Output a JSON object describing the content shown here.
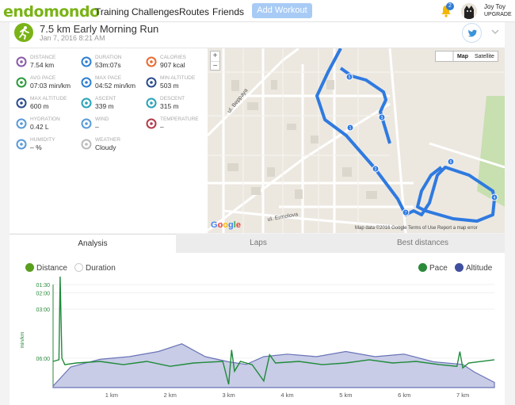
{
  "nav": {
    "logo": "endomondo",
    "links": [
      "Training",
      "Challenges",
      "Routes",
      "Friends"
    ],
    "add_workout": "Add Workout",
    "notifications": "2",
    "user_name": "Joy Toy",
    "upgrade": "UPGRADE"
  },
  "workout": {
    "title": "7.5 km Early Morning Run",
    "date": "Jan 7, 2016 8:21 AM"
  },
  "stats": [
    {
      "label": "DISTANCE",
      "value": "7.54 km",
      "icon": "distance-icon",
      "color": "#8a5aa8"
    },
    {
      "label": "DURATION",
      "value": "53m:07s",
      "icon": "stopwatch-icon",
      "color": "#2f7fd1"
    },
    {
      "label": "CALORIES",
      "value": "907 kcal",
      "icon": "flame-icon",
      "color": "#e96a2e"
    },
    {
      "label": "AVG PACE",
      "value": "07:03 min/km",
      "icon": "pace-icon",
      "color": "#2a9a3b"
    },
    {
      "label": "MAX PACE",
      "value": "04:52 min/km",
      "icon": "stopwatch-icon",
      "color": "#2f7fd1"
    },
    {
      "label": "MIN ALTITUDE",
      "value": "503 m",
      "icon": "mountain-icon",
      "color": "#2a4b8f"
    },
    {
      "label": "MAX ALTITUDE",
      "value": "600 m",
      "icon": "mountain-icon",
      "color": "#2a4b8f"
    },
    {
      "label": "ASCENT",
      "value": "339 m",
      "icon": "ascent-icon",
      "color": "#27a3b8"
    },
    {
      "label": "DESCENT",
      "value": "315 m",
      "icon": "descent-icon",
      "color": "#27a3b8"
    },
    {
      "label": "HYDRATION",
      "value": "0.42 L",
      "icon": "drop-icon",
      "color": "#5a9ad8"
    },
    {
      "label": "WIND",
      "value": "–",
      "icon": "wind-icon",
      "color": "#5a9ad8"
    },
    {
      "label": "TEMPERATURE",
      "value": "–",
      "icon": "thermometer-icon",
      "color": "#b23a4a"
    },
    {
      "label": "HUMIDITY",
      "value": "– %",
      "icon": "humidity-icon",
      "color": "#5a9ad8"
    },
    {
      "label": "WEATHER",
      "value": "Cloudy",
      "icon": "cloud-icon",
      "color": "#bbbbbb"
    }
  ],
  "map": {
    "street1": "ul. Beppaya",
    "street2": "ul. Ermolova",
    "map_button": "Map",
    "satellite_button": "Satellite",
    "footer": "Map data ©2016 Google   Terms of Use   Report a map error",
    "google": "Google",
    "markers": [
      "1",
      "2",
      "3",
      "4",
      "5",
      "6",
      "7"
    ],
    "route_color": "#2f7ae0"
  },
  "tabs": [
    "Analysis",
    "Laps",
    "Best distances"
  ],
  "analysis": {
    "options": [
      {
        "label": "Distance",
        "checked": true,
        "color": "#5a9e1e"
      },
      {
        "label": "Duration",
        "checked": false,
        "color": "#cccccc"
      },
      {
        "label": "Pace",
        "checked": true,
        "color": "#2a8a3a"
      },
      {
        "label": "Altitude",
        "checked": true,
        "color": "#3f4f9e"
      }
    ]
  },
  "chart_data": {
    "type": "line",
    "ylabel": "min/km",
    "y_ticks": [
      "01:30",
      "02:00",
      "03:00",
      "06:00"
    ],
    "x_ticks": [
      "1 km",
      "2 km",
      "3 km",
      "4 km",
      "5 km",
      "6 km",
      "7 km"
    ],
    "x_range": [
      0,
      7.54
    ],
    "series": [
      {
        "name": "Pace",
        "color": "#1f8a3a",
        "x": [
          0,
          0.1,
          0.12,
          0.15,
          0.2,
          0.4,
          0.8,
          1.2,
          1.6,
          2.0,
          2.4,
          2.9,
          3.0,
          3.05,
          3.1,
          3.2,
          3.4,
          3.6,
          3.7,
          3.8,
          4.2,
          4.6,
          5.0,
          5.4,
          5.8,
          6.2,
          6.6,
          6.9,
          6.95,
          7.0,
          7.1,
          7.54
        ],
        "y": [
          6.2,
          6.1,
          1.0,
          6.0,
          6.4,
          6.3,
          6.2,
          6.4,
          6.2,
          6.5,
          6.3,
          6.2,
          7.6,
          5.5,
          6.8,
          6.2,
          6.4,
          7.4,
          5.8,
          6.3,
          6.2,
          6.4,
          6.3,
          6.1,
          6.3,
          6.2,
          6.4,
          6.5,
          5.6,
          6.6,
          6.3,
          6.1
        ]
      },
      {
        "name": "Altitude",
        "color": "#6a74b8",
        "x": [
          0,
          0.3,
          0.8,
          1.3,
          1.8,
          2.2,
          2.6,
          3.0,
          3.3,
          3.6,
          4.0,
          4.5,
          5.0,
          5.5,
          6.0,
          6.5,
          7.0,
          7.2,
          7.54
        ],
        "y": [
          503,
          540,
          555,
          560,
          570,
          585,
          560,
          550,
          545,
          560,
          565,
          560,
          570,
          560,
          565,
          550,
          545,
          530,
          510
        ]
      }
    ]
  }
}
